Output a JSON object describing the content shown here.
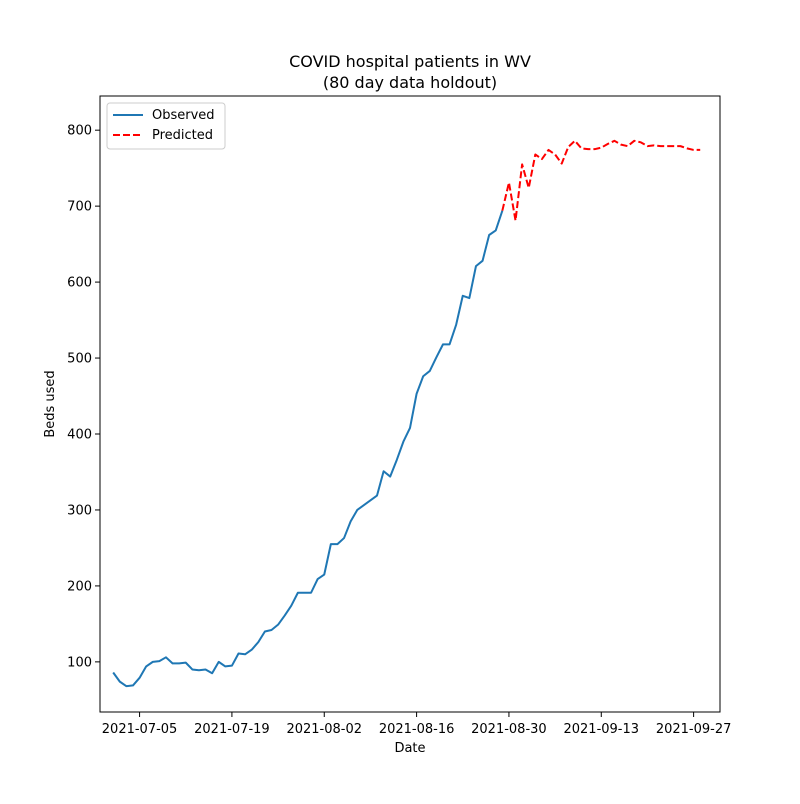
{
  "chart_data": {
    "type": "line",
    "title_line1": "COVID hospital patients in WV",
    "title_line2": "(80 day data holdout)",
    "xlabel": "Date",
    "ylabel": "Beds used",
    "x_range": [
      "2021-06-29",
      "2021-10-01"
    ],
    "ylim": [
      34,
      845
    ],
    "x_ticks": [
      "2021-07-05",
      "2021-07-19",
      "2021-08-02",
      "2021-08-16",
      "2021-08-30",
      "2021-09-13",
      "2021-09-27"
    ],
    "y_ticks": [
      100,
      200,
      300,
      400,
      500,
      600,
      700,
      800
    ],
    "grid": false,
    "legend_position": "top-left",
    "series": [
      {
        "name": "Observed",
        "color": "#1f77b4",
        "style": "solid",
        "points": [
          [
            "2021-07-01",
            86
          ],
          [
            "2021-07-02",
            74
          ],
          [
            "2021-07-03",
            68
          ],
          [
            "2021-07-04",
            69
          ],
          [
            "2021-07-05",
            79
          ],
          [
            "2021-07-06",
            94
          ],
          [
            "2021-07-07",
            100
          ],
          [
            "2021-07-08",
            101
          ],
          [
            "2021-07-09",
            106
          ],
          [
            "2021-07-10",
            98
          ],
          [
            "2021-07-11",
            98
          ],
          [
            "2021-07-12",
            99
          ],
          [
            "2021-07-13",
            90
          ],
          [
            "2021-07-14",
            89
          ],
          [
            "2021-07-15",
            90
          ],
          [
            "2021-07-16",
            85
          ],
          [
            "2021-07-17",
            100
          ],
          [
            "2021-07-18",
            94
          ],
          [
            "2021-07-19",
            95
          ],
          [
            "2021-07-20",
            111
          ],
          [
            "2021-07-21",
            110
          ],
          [
            "2021-07-22",
            116
          ],
          [
            "2021-07-23",
            126
          ],
          [
            "2021-07-24",
            140
          ],
          [
            "2021-07-25",
            142
          ],
          [
            "2021-07-26",
            149
          ],
          [
            "2021-07-27",
            161
          ],
          [
            "2021-07-28",
            174
          ],
          [
            "2021-07-29",
            191
          ],
          [
            "2021-07-30",
            191
          ],
          [
            "2021-07-31",
            191
          ],
          [
            "2021-08-01",
            209
          ],
          [
            "2021-08-02",
            215
          ],
          [
            "2021-08-03",
            255
          ],
          [
            "2021-08-04",
            255
          ],
          [
            "2021-08-05",
            263
          ],
          [
            "2021-08-06",
            285
          ],
          [
            "2021-08-07",
            300
          ],
          [
            "2021-08-10",
            319
          ],
          [
            "2021-08-11",
            351
          ],
          [
            "2021-08-12",
            344
          ],
          [
            "2021-08-13",
            366
          ],
          [
            "2021-08-14",
            390
          ],
          [
            "2021-08-15",
            408
          ],
          [
            "2021-08-16",
            453
          ],
          [
            "2021-08-17",
            476
          ],
          [
            "2021-08-18",
            483
          ],
          [
            "2021-08-19",
            501
          ],
          [
            "2021-08-20",
            518
          ],
          [
            "2021-08-21",
            518
          ],
          [
            "2021-08-22",
            544
          ],
          [
            "2021-08-23",
            582
          ],
          [
            "2021-08-24",
            579
          ],
          [
            "2021-08-25",
            621
          ],
          [
            "2021-08-26",
            628
          ],
          [
            "2021-08-27",
            662
          ],
          [
            "2021-08-28",
            668
          ],
          [
            "2021-08-29",
            694
          ]
        ]
      },
      {
        "name": "Predicted",
        "color": "#ff0000",
        "style": "dashed",
        "points": [
          [
            "2021-08-29",
            694
          ],
          [
            "2021-08-30",
            731
          ],
          [
            "2021-08-31",
            681
          ],
          [
            "2021-09-01",
            755
          ],
          [
            "2021-09-02",
            724
          ],
          [
            "2021-09-03",
            768
          ],
          [
            "2021-09-04",
            762
          ],
          [
            "2021-09-05",
            774
          ],
          [
            "2021-09-06",
            768
          ],
          [
            "2021-09-07",
            756
          ],
          [
            "2021-09-08",
            778
          ],
          [
            "2021-09-09",
            786
          ],
          [
            "2021-09-10",
            776
          ],
          [
            "2021-09-11",
            775
          ],
          [
            "2021-09-12",
            775
          ],
          [
            "2021-09-13",
            777
          ],
          [
            "2021-09-14",
            782
          ],
          [
            "2021-09-15",
            786
          ],
          [
            "2021-09-16",
            781
          ],
          [
            "2021-09-17",
            779
          ],
          [
            "2021-09-18",
            786
          ],
          [
            "2021-09-19",
            784
          ],
          [
            "2021-09-20",
            779
          ],
          [
            "2021-09-21",
            780
          ],
          [
            "2021-09-22",
            779
          ],
          [
            "2021-09-23",
            779
          ],
          [
            "2021-09-24",
            779
          ],
          [
            "2021-09-25",
            779
          ],
          [
            "2021-09-26",
            776
          ],
          [
            "2021-09-27",
            774
          ],
          [
            "2021-09-28",
            774
          ]
        ]
      }
    ]
  }
}
